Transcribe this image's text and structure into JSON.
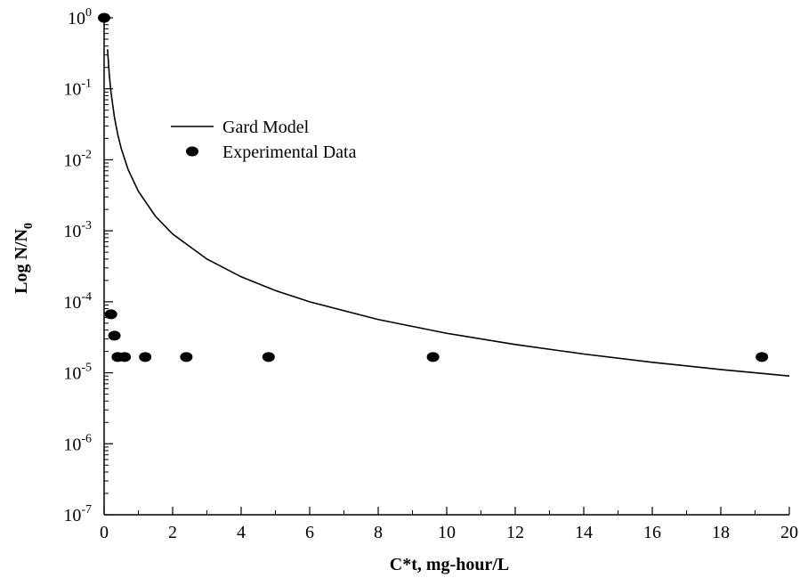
{
  "chart_data": {
    "type": "scatter",
    "xlabel": "C*t, mg-hour/L",
    "ylabel_main": "Log N/N",
    "ylabel_sub": "0",
    "xlim": [
      0,
      20
    ],
    "ylim": [
      1e-07,
      1
    ],
    "y_scale": "log",
    "x_ticks": [
      0,
      2,
      4,
      6,
      8,
      10,
      12,
      14,
      16,
      18,
      20
    ],
    "x_tick_labels": [
      "0",
      "2",
      "4",
      "6",
      "8",
      "10",
      "12",
      "14",
      "16",
      "18",
      "20"
    ],
    "y_ticks": [
      {
        "value": 1,
        "base": "10",
        "exp": "0"
      },
      {
        "value": 0.1,
        "base": "10",
        "exp": "-1"
      },
      {
        "value": 0.01,
        "base": "10",
        "exp": "-2"
      },
      {
        "value": 0.001,
        "base": "10",
        "exp": "-3"
      },
      {
        "value": 0.0001,
        "base": "10",
        "exp": "-4"
      },
      {
        "value": 1e-05,
        "base": "10",
        "exp": "-5"
      },
      {
        "value": 1e-06,
        "base": "10",
        "exp": "-6"
      },
      {
        "value": 1e-07,
        "base": "10",
        "exp": "-7"
      }
    ],
    "grid": false,
    "legend_position": "upper-left",
    "series": [
      {
        "name": "Gard Model",
        "kind": "line",
        "color": "#000000",
        "x": [
          0.1,
          0.15,
          0.2,
          0.3,
          0.4,
          0.5,
          0.7,
          1,
          1.5,
          2,
          3,
          4,
          5,
          6,
          8,
          10,
          12,
          14,
          16,
          18,
          20
        ],
        "y": [
          0.36,
          0.16,
          0.09,
          0.04,
          0.0225,
          0.0144,
          0.0073,
          0.0036,
          0.0016,
          0.0009,
          0.0004,
          0.000225,
          0.000144,
          0.0001,
          5.625e-05,
          3.6e-05,
          2.5e-05,
          1.837e-05,
          1.406e-05,
          1.111e-05,
          9e-06
        ]
      },
      {
        "name": "Experimental Data",
        "kind": "scatter",
        "color": "#000000",
        "x": [
          0,
          0.2,
          0.3,
          0.4,
          0.6,
          1.2,
          2.4,
          4.8,
          9.6,
          19.2
        ],
        "y": [
          1,
          6.67e-05,
          3.33e-05,
          1.67e-05,
          1.67e-05,
          1.67e-05,
          1.67e-05,
          1.67e-05,
          1.67e-05,
          1.67e-05
        ]
      }
    ]
  }
}
